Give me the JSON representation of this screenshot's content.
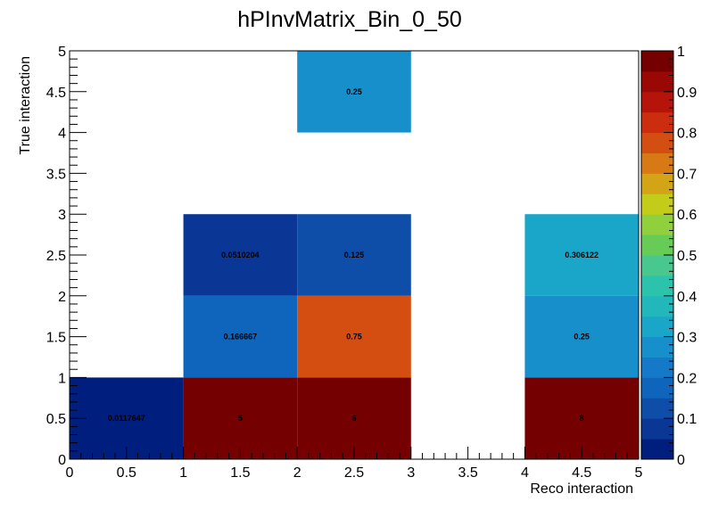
{
  "chart_data": {
    "type": "heatmap",
    "title": "hPInvMatrix_Bin_0_50",
    "xlabel": "Reco interaction",
    "ylabel": "True interaction",
    "xlim": [
      0,
      5
    ],
    "ylim": [
      0,
      5
    ],
    "zlim": [
      0,
      1
    ],
    "x_ticks": [
      "0",
      "0.5",
      "1",
      "1.5",
      "2",
      "2.5",
      "3",
      "3.5",
      "4",
      "4.5",
      "5"
    ],
    "y_ticks": [
      "0",
      "0.5",
      "1",
      "1.5",
      "2",
      "2.5",
      "3",
      "3.5",
      "4",
      "4.5",
      "5"
    ],
    "z_ticks": [
      "0",
      "0.1",
      "0.2",
      "0.3",
      "0.4",
      "0.5",
      "0.6",
      "0.7",
      "0.8",
      "0.9",
      "1"
    ],
    "cells": [
      {
        "x": 0,
        "y": 0,
        "value": 0.0117647,
        "label": "0.0117647"
      },
      {
        "x": 1,
        "y": 0,
        "value": 5,
        "label": "5"
      },
      {
        "x": 2,
        "y": 0,
        "value": 6,
        "label": "6"
      },
      {
        "x": 4,
        "y": 0,
        "value": 8,
        "label": "8"
      },
      {
        "x": 1,
        "y": 1,
        "value": 0.166667,
        "label": "0.166667"
      },
      {
        "x": 2,
        "y": 1,
        "value": 0.75,
        "label": "0.75"
      },
      {
        "x": 4,
        "y": 1,
        "value": 0.25,
        "label": "0.25"
      },
      {
        "x": 1,
        "y": 2,
        "value": 0.0510204,
        "label": "0.0510204"
      },
      {
        "x": 2,
        "y": 2,
        "value": 0.125,
        "label": "0.125"
      },
      {
        "x": 4,
        "y": 2,
        "value": 0.306122,
        "label": "0.306122"
      },
      {
        "x": 2,
        "y": 4,
        "value": 0.25,
        "label": "0.25"
      }
    ],
    "palette": [
      "#001e7e",
      "#0a3696",
      "#0e4da8",
      "#0f64bb",
      "#1479c9",
      "#168fcb",
      "#1aa6c8",
      "#22b7bb",
      "#2cc3ad",
      "#48c78f",
      "#67cc55",
      "#90d03d",
      "#c4cc1a",
      "#d3a415",
      "#d77a15",
      "#d44e12",
      "#cb2d0e",
      "#b6140a",
      "#9a0806",
      "#750001"
    ],
    "grid": false,
    "colorbar": "right"
  }
}
